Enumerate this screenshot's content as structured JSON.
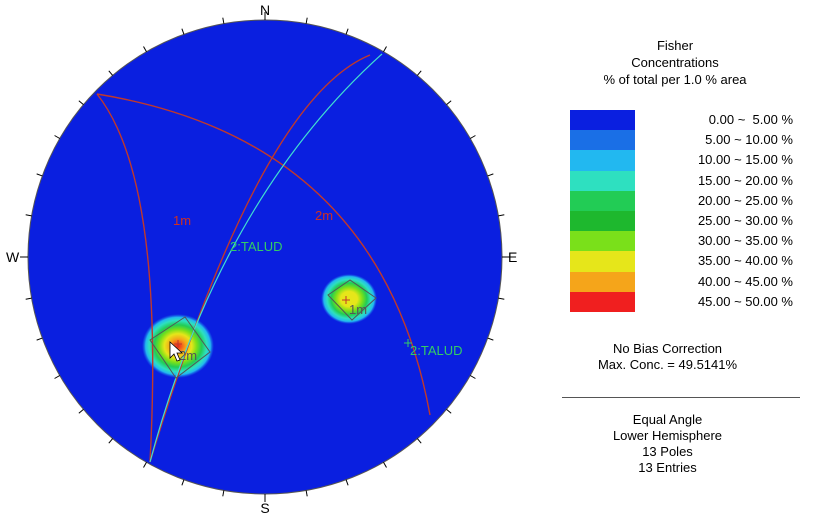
{
  "compass": {
    "north": "N",
    "south": "S",
    "east": "E",
    "west": "W"
  },
  "colors": {
    "background": "#0a1fe0",
    "circle_edge": "#555555",
    "plane_m": "#c0392b",
    "plane_talud": "#40e0d0",
    "label_m": "#d03020",
    "label_talud": "#33cc66",
    "bins": [
      "#0a1fe0",
      "#1a6fe6",
      "#22b8f0",
      "#2ee0c0",
      "#22cc55",
      "#1eb82e",
      "#7ae01a",
      "#e6e61a",
      "#f5a51a",
      "#f01f1f"
    ]
  },
  "planes": [
    {
      "id": "plane-1m",
      "label": "1m",
      "type": "joint set"
    },
    {
      "id": "plane-2m",
      "label": "2m",
      "type": "joint set"
    },
    {
      "id": "plane-talud",
      "label": "2:TALUD",
      "type": "slope"
    }
  ],
  "pole_labels": {
    "set1": "1m",
    "set2": "2m",
    "talud": "2:TALUD"
  },
  "legend": {
    "title_1": "Fisher",
    "title_2": "Concentrations",
    "title_3": "% of total per 1.0 % area",
    "bins": [
      "0.00 ~  5.00 %",
      "5.00 ~ 10.00 %",
      "10.00 ~ 15.00 %",
      "15.00 ~ 20.00 %",
      "20.00 ~ 25.00 %",
      "25.00 ~ 30.00 %",
      "30.00 ~ 35.00 %",
      "35.00 ~ 40.00 %",
      "40.00 ~ 45.00 %",
      "45.00 ~ 50.00 %"
    ],
    "bias": "No Bias Correction",
    "max_conc": "Max. Conc. = 49.5141%"
  },
  "projection": {
    "method": "Equal Angle",
    "hemisphere": "Lower Hemisphere",
    "poles": "13 Poles",
    "entries": "13 Entries"
  }
}
